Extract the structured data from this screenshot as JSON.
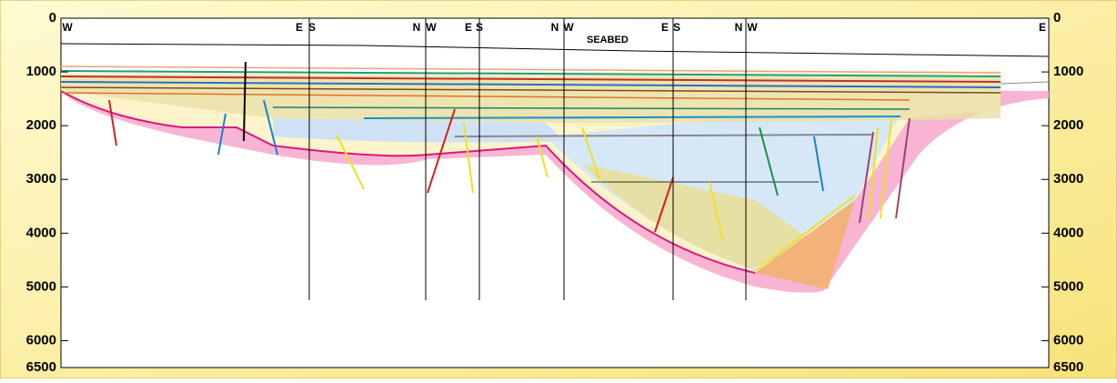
{
  "depth_axis": {
    "left": [
      0,
      1000,
      2000,
      3000,
      4000,
      5000,
      6000,
      6500
    ],
    "right": [
      0,
      1000,
      2000,
      3000,
      4000,
      5000,
      6000,
      6500
    ]
  },
  "section_labels": [
    "W",
    "E",
    "S",
    "N",
    "W",
    "E",
    "S",
    "N",
    "W",
    "E",
    "S",
    "N",
    "W",
    "E"
  ],
  "seabed_label": "SEABED"
}
